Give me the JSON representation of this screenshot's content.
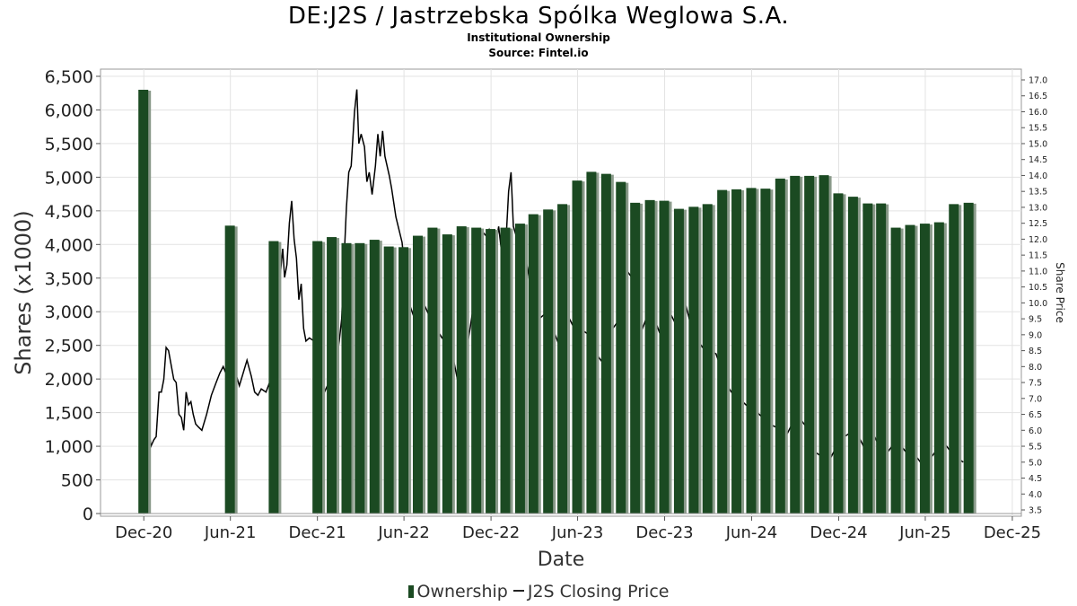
{
  "title": "DE:J2S / Jastrzebska Spólka Weglowa S.A.",
  "subtitle": "Institutional Ownership",
  "source": "Source: Fintel.io",
  "chart_data": {
    "type": "bar",
    "xlabel": "Date",
    "ylabel": "Shares (x1000)",
    "y2label": "Share Price",
    "ylim": [
      0,
      6500
    ],
    "y2lim": [
      3.4,
      17.2
    ],
    "yticks": [
      "0",
      "500",
      "1,000",
      "1,500",
      "2,000",
      "2,500",
      "3,000",
      "3,500",
      "4,000",
      "4,500",
      "5,000",
      "5,500",
      "6,000",
      "6,500"
    ],
    "y2ticks": [
      "3.5",
      "4.0",
      "4.5",
      "5.0",
      "5.5",
      "6.0",
      "6.5",
      "7.0",
      "7.5",
      "8.0",
      "8.5",
      "9.0",
      "9.5",
      "10.0",
      "10.5",
      "11.0",
      "11.5",
      "12.0",
      "12.5",
      "13.0",
      "13.5",
      "14.0",
      "14.5",
      "15.0",
      "15.5",
      "16.0",
      "16.5",
      "17.0"
    ],
    "xticks": [
      "Dec-20",
      "Jun-21",
      "Dec-21",
      "Jun-22",
      "Dec-22",
      "Jun-23",
      "Dec-23",
      "Jun-24",
      "Dec-24",
      "Jun-25",
      "Dec-25"
    ],
    "grid": true,
    "legend": "bottom",
    "colors": {
      "bar": "#1b4a22",
      "bar_shadow": "#8a9a8a",
      "line": "#000000",
      "grid": "#e3e3e3"
    },
    "series": [
      {
        "name": "Ownership",
        "points": [
          [
            "2020-11-30",
            6300
          ],
          [
            "2021-05-31",
            4280
          ],
          [
            "2021-08-31",
            4050
          ],
          [
            "2021-12-01",
            4050
          ],
          [
            "2021-12-31",
            4110
          ],
          [
            "2022-01-31",
            4020
          ],
          [
            "2022-02-28",
            4020
          ],
          [
            "2022-03-31",
            4070
          ],
          [
            "2022-04-30",
            3970
          ],
          [
            "2022-05-31",
            3960
          ],
          [
            "2022-06-30",
            4130
          ],
          [
            "2022-07-31",
            4250
          ],
          [
            "2022-08-31",
            4150
          ],
          [
            "2022-09-30",
            4270
          ],
          [
            "2022-10-31",
            4250
          ],
          [
            "2022-11-30",
            4230
          ],
          [
            "2022-12-31",
            4250
          ],
          [
            "2023-01-31",
            4310
          ],
          [
            "2023-02-28",
            4450
          ],
          [
            "2023-03-31",
            4520
          ],
          [
            "2023-04-30",
            4600
          ],
          [
            "2023-05-31",
            4950
          ],
          [
            "2023-06-30",
            5080
          ],
          [
            "2023-07-31",
            5050
          ],
          [
            "2023-08-31",
            4930
          ],
          [
            "2023-09-30",
            4620
          ],
          [
            "2023-10-31",
            4660
          ],
          [
            "2023-11-30",
            4650
          ],
          [
            "2023-12-31",
            4530
          ],
          [
            "2024-01-31",
            4560
          ],
          [
            "2024-02-29",
            4600
          ],
          [
            "2024-03-31",
            4810
          ],
          [
            "2024-04-30",
            4820
          ],
          [
            "2024-05-31",
            4840
          ],
          [
            "2024-06-30",
            4830
          ],
          [
            "2024-07-31",
            4980
          ],
          [
            "2024-08-31",
            5020
          ],
          [
            "2024-09-30",
            5020
          ],
          [
            "2024-10-31",
            5030
          ],
          [
            "2024-11-30",
            4760
          ],
          [
            "2024-12-31",
            4710
          ],
          [
            "2025-01-31",
            4610
          ],
          [
            "2025-02-28",
            4610
          ],
          [
            "2025-03-31",
            4250
          ],
          [
            "2025-04-30",
            4290
          ],
          [
            "2025-05-31",
            4310
          ],
          [
            "2025-06-30",
            4330
          ],
          [
            "2025-07-31",
            4600
          ],
          [
            "2025-08-31",
            4620
          ]
        ]
      },
      {
        "name": "J2S Closing Price",
        "points": [
          [
            "2020-12-01",
            5.1
          ],
          [
            "2020-12-05",
            5.4
          ],
          [
            "2020-12-12",
            6.0
          ],
          [
            "2020-12-16",
            5.5
          ],
          [
            "2020-12-22",
            5.7
          ],
          [
            "2020-12-27",
            5.8
          ],
          [
            "2021-01-02",
            7.2
          ],
          [
            "2021-01-07",
            7.2
          ],
          [
            "2021-01-12",
            7.6
          ],
          [
            "2021-01-17",
            8.6
          ],
          [
            "2021-01-22",
            8.5
          ],
          [
            "2021-02-02",
            7.6
          ],
          [
            "2021-02-07",
            7.5
          ],
          [
            "2021-02-13",
            6.5
          ],
          [
            "2021-02-18",
            6.4
          ],
          [
            "2021-02-23",
            6.0
          ],
          [
            "2021-02-28",
            7.2
          ],
          [
            "2021-03-05",
            6.8
          ],
          [
            "2021-03-10",
            6.9
          ],
          [
            "2021-03-15",
            6.5
          ],
          [
            "2021-03-20",
            6.2
          ],
          [
            "2021-03-26",
            6.1
          ],
          [
            "2021-04-02",
            6.0
          ],
          [
            "2021-04-12",
            6.5
          ],
          [
            "2021-04-22",
            7.1
          ],
          [
            "2021-05-02",
            7.5
          ],
          [
            "2021-05-10",
            7.8
          ],
          [
            "2021-05-17",
            8.0
          ],
          [
            "2021-05-25",
            7.7
          ],
          [
            "2021-06-02",
            7.6
          ],
          [
            "2021-06-10",
            7.9
          ],
          [
            "2021-06-20",
            7.4
          ],
          [
            "2021-06-28",
            7.8
          ],
          [
            "2021-07-06",
            8.2
          ],
          [
            "2021-07-15",
            7.7
          ],
          [
            "2021-07-22",
            7.2
          ],
          [
            "2021-07-29",
            7.1
          ],
          [
            "2021-08-05",
            7.3
          ],
          [
            "2021-08-15",
            7.2
          ],
          [
            "2021-08-25",
            7.6
          ],
          [
            "2021-09-02",
            7.7
          ],
          [
            "2021-09-09",
            8.4
          ],
          [
            "2021-09-14",
            10.9
          ],
          [
            "2021-09-19",
            11.7
          ],
          [
            "2021-09-23",
            10.8
          ],
          [
            "2021-09-28",
            11.2
          ],
          [
            "2021-10-03",
            12.5
          ],
          [
            "2021-10-08",
            13.2
          ],
          [
            "2021-10-13",
            12.0
          ],
          [
            "2021-10-18",
            11.4
          ],
          [
            "2021-10-23",
            10.1
          ],
          [
            "2021-10-28",
            10.6
          ],
          [
            "2021-11-02",
            9.2
          ],
          [
            "2021-11-07",
            8.8
          ],
          [
            "2021-11-14",
            8.9
          ],
          [
            "2021-11-24",
            8.8
          ],
          [
            "2021-12-04",
            8.7
          ],
          [
            "2021-12-10",
            7.6
          ],
          [
            "2021-12-16",
            7.2
          ],
          [
            "2021-12-22",
            7.4
          ],
          [
            "2022-01-01",
            7.9
          ],
          [
            "2022-01-06",
            8.0
          ],
          [
            "2022-01-11",
            8.3
          ],
          [
            "2022-01-16",
            8.8
          ],
          [
            "2022-01-21",
            9.5
          ],
          [
            "2022-01-26",
            11.3
          ],
          [
            "2022-01-31",
            13.0
          ],
          [
            "2022-02-05",
            14.1
          ],
          [
            "2022-02-10",
            14.3
          ],
          [
            "2022-02-17",
            16.0
          ],
          [
            "2022-02-22",
            16.7
          ],
          [
            "2022-02-26",
            15.0
          ],
          [
            "2022-03-03",
            15.3
          ],
          [
            "2022-03-10",
            14.9
          ],
          [
            "2022-03-15",
            13.8
          ],
          [
            "2022-03-20",
            14.1
          ],
          [
            "2022-03-26",
            13.4
          ],
          [
            "2022-04-02",
            14.3
          ],
          [
            "2022-04-07",
            15.3
          ],
          [
            "2022-04-12",
            14.6
          ],
          [
            "2022-04-17",
            15.4
          ],
          [
            "2022-04-22",
            14.6
          ],
          [
            "2022-05-01",
            14.0
          ],
          [
            "2022-05-06",
            13.6
          ],
          [
            "2022-05-15",
            12.7
          ],
          [
            "2022-05-28",
            11.9
          ],
          [
            "2022-06-09",
            10.1
          ],
          [
            "2022-06-21",
            9.6
          ],
          [
            "2022-07-03",
            10.2
          ],
          [
            "2022-07-15",
            9.9
          ],
          [
            "2022-07-27",
            9.5
          ],
          [
            "2022-08-08",
            9.2
          ],
          [
            "2022-08-20",
            8.9
          ],
          [
            "2022-08-31",
            9.1
          ],
          [
            "2022-09-12",
            8.3
          ],
          [
            "2022-09-24",
            7.4
          ],
          [
            "2022-10-06",
            8.1
          ],
          [
            "2022-10-18",
            9.2
          ],
          [
            "2022-10-30",
            10.4
          ],
          [
            "2022-11-07",
            11.4
          ],
          [
            "2022-11-15",
            12.2
          ],
          [
            "2022-11-21",
            12.1
          ],
          [
            "2022-11-27",
            12.3
          ],
          [
            "2022-12-03",
            12.0
          ],
          [
            "2022-12-11",
            11.8
          ],
          [
            "2022-12-17",
            12.4
          ],
          [
            "2022-12-23",
            11.6
          ],
          [
            "2023-01-01",
            11.8
          ],
          [
            "2023-01-07",
            13.5
          ],
          [
            "2023-01-12",
            14.1
          ],
          [
            "2023-01-17",
            12.4
          ],
          [
            "2023-01-23",
            12.1
          ],
          [
            "2023-02-01",
            11.8
          ],
          [
            "2023-02-09",
            11.6
          ],
          [
            "2023-02-17",
            11.0
          ],
          [
            "2023-02-25",
            10.2
          ],
          [
            "2023-03-05",
            9.8
          ],
          [
            "2023-03-12",
            9.5
          ],
          [
            "2023-03-20",
            9.6
          ],
          [
            "2023-03-28",
            9.7
          ],
          [
            "2023-04-05",
            9.4
          ],
          [
            "2023-04-15",
            9.0
          ],
          [
            "2023-04-25",
            8.6
          ],
          [
            "2023-05-05",
            9.1
          ],
          [
            "2023-05-15",
            9.5
          ],
          [
            "2023-05-25",
            9.2
          ],
          [
            "2023-06-05",
            9.3
          ],
          [
            "2023-06-15",
            9.1
          ],
          [
            "2023-06-25",
            9.0
          ],
          [
            "2023-07-05",
            8.7
          ],
          [
            "2023-07-15",
            8.3
          ],
          [
            "2023-07-25",
            8.1
          ],
          [
            "2023-08-04",
            8.5
          ],
          [
            "2023-08-14",
            9.2
          ],
          [
            "2023-08-24",
            9.4
          ],
          [
            "2023-09-03",
            10.3
          ],
          [
            "2023-09-13",
            11.0
          ],
          [
            "2023-09-23",
            10.8
          ],
          [
            "2023-10-03",
            10.1
          ],
          [
            "2023-10-13",
            9.1
          ],
          [
            "2023-10-23",
            9.5
          ],
          [
            "2023-11-02",
            9.6
          ],
          [
            "2023-11-12",
            9.4
          ],
          [
            "2023-11-22",
            9.0
          ],
          [
            "2023-12-02",
            9.2
          ],
          [
            "2023-12-12",
            9.7
          ],
          [
            "2023-12-22",
            9.4
          ],
          [
            "2024-01-05",
            10.1
          ],
          [
            "2024-01-15",
            9.9
          ],
          [
            "2024-01-25",
            9.3
          ],
          [
            "2024-02-05",
            8.9
          ],
          [
            "2024-02-19",
            8.6
          ],
          [
            "2024-03-04",
            8.5
          ],
          [
            "2024-03-18",
            8.4
          ],
          [
            "2024-04-01",
            7.8
          ],
          [
            "2024-04-15",
            7.3
          ],
          [
            "2024-04-29",
            7.0
          ],
          [
            "2024-05-13",
            6.9
          ],
          [
            "2024-05-27",
            6.7
          ],
          [
            "2024-06-10",
            6.6
          ],
          [
            "2024-06-24",
            6.4
          ],
          [
            "2024-07-08",
            6.2
          ],
          [
            "2024-07-22",
            6.1
          ],
          [
            "2024-08-05",
            5.8
          ],
          [
            "2024-08-15",
            5.9
          ],
          [
            "2024-08-25",
            6.2
          ],
          [
            "2024-09-04",
            6.0
          ],
          [
            "2024-09-14",
            6.3
          ],
          [
            "2024-09-24",
            6.1
          ],
          [
            "2024-10-04",
            5.7
          ],
          [
            "2024-10-14",
            5.3
          ],
          [
            "2024-10-24",
            5.2
          ],
          [
            "2024-11-03",
            5.3
          ],
          [
            "2024-11-13",
            5.1
          ],
          [
            "2024-11-23",
            5.4
          ],
          [
            "2024-12-03",
            5.6
          ],
          [
            "2024-12-13",
            5.8
          ],
          [
            "2024-12-23",
            5.9
          ],
          [
            "2025-01-02",
            5.6
          ],
          [
            "2025-01-12",
            5.8
          ],
          [
            "2025-01-22",
            5.5
          ],
          [
            "2025-02-01",
            5.7
          ],
          [
            "2025-02-11",
            5.9
          ],
          [
            "2025-02-21",
            5.6
          ],
          [
            "2025-03-03",
            5.4
          ],
          [
            "2025-03-13",
            5.3
          ],
          [
            "2025-03-23",
            5.5
          ],
          [
            "2025-04-02",
            5.6
          ],
          [
            "2025-04-12",
            5.5
          ],
          [
            "2025-04-22",
            5.3
          ],
          [
            "2025-05-02",
            5.4
          ],
          [
            "2025-05-12",
            5.2
          ],
          [
            "2025-05-22",
            5.0
          ],
          [
            "2025-06-01",
            4.9
          ],
          [
            "2025-06-11",
            5.1
          ],
          [
            "2025-06-21",
            5.3
          ],
          [
            "2025-07-01",
            5.2
          ],
          [
            "2025-07-11",
            5.6
          ],
          [
            "2025-07-21",
            5.4
          ],
          [
            "2025-07-31",
            5.3
          ],
          [
            "2025-08-10",
            5.1
          ],
          [
            "2025-08-20",
            5.0
          ]
        ]
      }
    ]
  }
}
